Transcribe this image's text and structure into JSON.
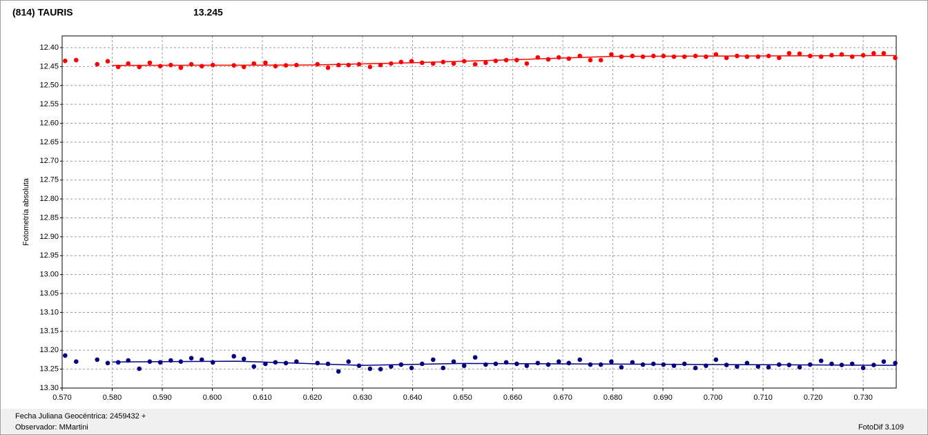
{
  "chart_data": {
    "type": "scatter",
    "y_label": "Fotometría absoluta",
    "footer": {
      "date": "Fecha Juliana Geocéntrica: 2459432 +",
      "observer": "Observador: MMartini",
      "software": "FotoDif 3.109"
    },
    "xlim": [
      0.57,
      0.7366
    ],
    "ylim": [
      12.369,
      13.3
    ],
    "y_inverted": true,
    "grid": true,
    "xticks": [
      {
        "value": 0.57,
        "label": "0.570"
      },
      {
        "value": 0.58,
        "label": "0.580"
      },
      {
        "value": 0.59,
        "label": "0.590"
      },
      {
        "value": 0.6,
        "label": "0.600"
      },
      {
        "value": 0.61,
        "label": "0.610"
      },
      {
        "value": 0.62,
        "label": "0.620"
      },
      {
        "value": 0.63,
        "label": "0.630"
      },
      {
        "value": 0.64,
        "label": "0.640"
      },
      {
        "value": 0.65,
        "label": "0.650"
      },
      {
        "value": 0.66,
        "label": "0.660"
      },
      {
        "value": 0.67,
        "label": "0.670"
      },
      {
        "value": 0.68,
        "label": "0.680"
      },
      {
        "value": 0.69,
        "label": "0.690"
      },
      {
        "value": 0.7,
        "label": "0.700"
      },
      {
        "value": 0.71,
        "label": "0.710"
      },
      {
        "value": 0.72,
        "label": "0.720"
      },
      {
        "value": 0.73,
        "label": "0.730"
      }
    ],
    "yticks": [
      {
        "value": 12.4,
        "label": "12.40"
      },
      {
        "value": 12.45,
        "label": "12.45"
      },
      {
        "value": 12.5,
        "label": "12.50"
      },
      {
        "value": 12.55,
        "label": "12.55"
      },
      {
        "value": 12.6,
        "label": "12.60"
      },
      {
        "value": 12.65,
        "label": "12.65"
      },
      {
        "value": 12.7,
        "label": "12.70"
      },
      {
        "value": 12.75,
        "label": "12.75"
      },
      {
        "value": 12.8,
        "label": "12.80"
      },
      {
        "value": 12.85,
        "label": "12.85"
      },
      {
        "value": 12.9,
        "label": "12.90"
      },
      {
        "value": 12.95,
        "label": "12.95"
      },
      {
        "value": 13.0,
        "label": "13.00"
      },
      {
        "value": 13.05,
        "label": "13.05"
      },
      {
        "value": 13.1,
        "label": "13.10"
      },
      {
        "value": 13.15,
        "label": "13.15"
      },
      {
        "value": 13.2,
        "label": "13.20"
      },
      {
        "value": 13.25,
        "label": "13.25"
      },
      {
        "value": 13.3,
        "label": "13.30"
      }
    ],
    "x": [
      0.5706,
      0.5728,
      0.577,
      0.5791,
      0.5812,
      0.5832,
      0.5854,
      0.5875,
      0.5896,
      0.5917,
      0.5937,
      0.5958,
      0.5979,
      0.6001,
      0.6043,
      0.6063,
      0.6083,
      0.6106,
      0.6126,
      0.6147,
      0.6168,
      0.621,
      0.6231,
      0.6252,
      0.6272,
      0.6293,
      0.6315,
      0.6336,
      0.6357,
      0.6377,
      0.6398,
      0.6419,
      0.6441,
      0.6461,
      0.6482,
      0.6503,
      0.6525,
      0.6546,
      0.6566,
      0.6587,
      0.6608,
      0.6628,
      0.665,
      0.6671,
      0.6692,
      0.6712,
      0.6734,
      0.6755,
      0.6776,
      0.6797,
      0.6817,
      0.6839,
      0.686,
      0.6881,
      0.6901,
      0.6922,
      0.6943,
      0.6965,
      0.6986,
      0.7006,
      0.7027,
      0.7048,
      0.7068,
      0.709,
      0.7111,
      0.7132,
      0.7152,
      0.7173,
      0.7194,
      0.7216,
      0.7237,
      0.7257,
      0.7278,
      0.73,
      0.7321,
      0.7341,
      0.7364
    ],
    "series": [
      {
        "name": "(814) TAURIS",
        "color": "#ff0000",
        "values": [
          12.435,
          12.433,
          12.444,
          12.436,
          12.451,
          12.442,
          12.451,
          12.44,
          12.449,
          12.446,
          12.453,
          12.444,
          12.449,
          12.446,
          12.447,
          12.451,
          12.442,
          12.44,
          12.449,
          12.447,
          12.446,
          12.444,
          12.453,
          12.446,
          12.446,
          12.444,
          12.451,
          12.446,
          12.442,
          12.438,
          12.436,
          12.44,
          12.442,
          12.438,
          12.442,
          12.436,
          12.444,
          12.44,
          12.435,
          12.433,
          12.433,
          12.442,
          12.426,
          12.431,
          12.426,
          12.429,
          12.422,
          12.433,
          12.433,
          12.418,
          12.424,
          12.422,
          12.424,
          12.422,
          12.422,
          12.424,
          12.424,
          12.422,
          12.424,
          12.418,
          12.427,
          12.422,
          12.424,
          12.424,
          12.422,
          12.427,
          12.415,
          12.416,
          12.422,
          12.424,
          12.42,
          12.418,
          12.424,
          12.42,
          12.415,
          12.415,
          12.427
        ],
        "trend": {
          "x": [
            0.58,
            0.62,
            0.64,
            0.66,
            0.68,
            0.7366
          ],
          "values": [
            12.447,
            12.446,
            12.44,
            12.432,
            12.423,
            12.421
          ]
        }
      },
      {
        "name": "13.245",
        "color": "#000080",
        "values": [
          13.214,
          13.23,
          13.225,
          13.234,
          13.232,
          13.227,
          13.249,
          13.23,
          13.232,
          13.227,
          13.23,
          13.221,
          13.225,
          13.232,
          13.216,
          13.223,
          13.243,
          13.236,
          13.232,
          13.234,
          13.23,
          13.234,
          13.236,
          13.256,
          13.23,
          13.241,
          13.249,
          13.25,
          13.243,
          13.238,
          13.247,
          13.236,
          13.225,
          13.247,
          13.23,
          13.241,
          13.219,
          13.238,
          13.236,
          13.232,
          13.236,
          13.241,
          13.234,
          13.238,
          13.23,
          13.234,
          13.225,
          13.238,
          13.238,
          13.23,
          13.245,
          13.232,
          13.238,
          13.236,
          13.238,
          13.241,
          13.236,
          13.247,
          13.241,
          13.225,
          13.239,
          13.243,
          13.234,
          13.243,
          13.245,
          13.238,
          13.239,
          13.245,
          13.238,
          13.228,
          13.236,
          13.239,
          13.236,
          13.247,
          13.239,
          13.23,
          13.234
        ],
        "trend": {
          "x": [
            0.58,
            0.605,
            0.63,
            0.65,
            0.67,
            0.7366
          ],
          "values": [
            13.231,
            13.229,
            13.24,
            13.235,
            13.236,
            13.24
          ]
        }
      }
    ]
  }
}
